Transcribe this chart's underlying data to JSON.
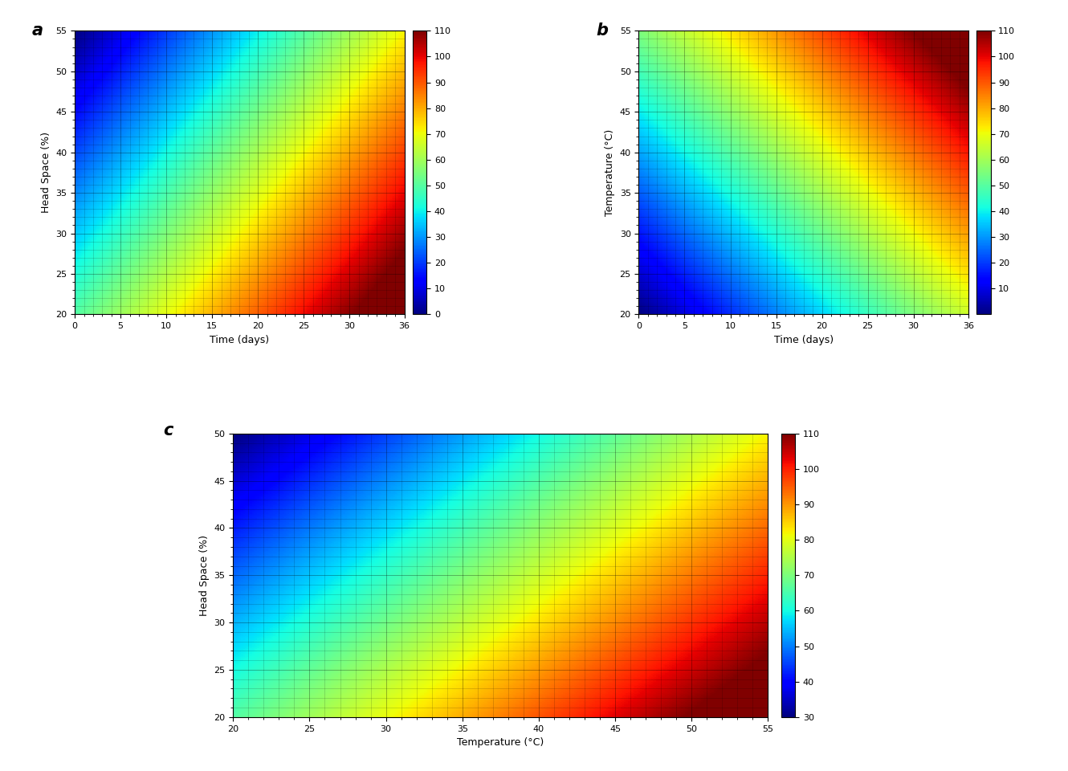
{
  "panel_a": {
    "xlabel": "Time (days)",
    "ylabel": "Head Space (%)",
    "xlim": [
      0,
      36
    ],
    "ylim": [
      20,
      55
    ],
    "xticks": [
      0,
      5,
      10,
      15,
      20,
      25,
      30,
      36
    ],
    "yticks": [
      20,
      25,
      30,
      35,
      40,
      45,
      50,
      55
    ],
    "clim": [
      0,
      110
    ],
    "cticks": [
      0,
      10,
      20,
      30,
      40,
      50,
      60,
      70,
      80,
      90,
      100,
      110
    ],
    "label": "a"
  },
  "panel_b": {
    "xlabel": "Time (days)",
    "ylabel": "Temperature (°C)",
    "xlim": [
      0,
      36
    ],
    "ylim": [
      20,
      55
    ],
    "xticks": [
      0,
      5,
      10,
      15,
      20,
      25,
      30,
      36
    ],
    "yticks": [
      20,
      25,
      30,
      35,
      40,
      45,
      50,
      55
    ],
    "clim": [
      0,
      110
    ],
    "cticks": [
      10,
      20,
      30,
      40,
      50,
      60,
      70,
      80,
      90,
      100,
      110
    ],
    "label": "b"
  },
  "panel_c": {
    "xlabel": "Temperature (°C)",
    "ylabel": "Head Space (%)",
    "xlim": [
      20,
      55
    ],
    "ylim": [
      20,
      50
    ],
    "xticks": [
      20,
      25,
      30,
      35,
      40,
      45,
      50,
      55
    ],
    "yticks": [
      20,
      25,
      30,
      35,
      40,
      45,
      50
    ],
    "clim": [
      30,
      110
    ],
    "cticks": [
      30,
      40,
      50,
      60,
      70,
      80,
      90,
      100,
      110
    ],
    "label": "c"
  },
  "cmap": "jet",
  "grid_color": "black",
  "grid_alpha": 0.25,
  "grid_linewidth": 0.4
}
